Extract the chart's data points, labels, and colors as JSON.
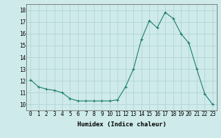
{
  "x": [
    0,
    1,
    2,
    3,
    4,
    5,
    6,
    7,
    8,
    9,
    10,
    11,
    12,
    13,
    14,
    15,
    16,
    17,
    18,
    19,
    20,
    21,
    22,
    23
  ],
  "y": [
    12.1,
    11.5,
    11.3,
    11.2,
    11.0,
    10.5,
    10.3,
    10.3,
    10.3,
    10.3,
    10.3,
    10.4,
    11.5,
    13.0,
    15.5,
    17.1,
    16.5,
    17.8,
    17.3,
    16.0,
    15.2,
    13.0,
    10.9,
    10.0
  ],
  "line_color": "#1a7a6e",
  "marker": "+",
  "marker_size": 3,
  "xlabel": "Humidex (Indice chaleur)",
  "xlim": [
    -0.5,
    23.5
  ],
  "ylim": [
    9.5,
    18.5
  ],
  "yticks": [
    10,
    11,
    12,
    13,
    14,
    15,
    16,
    17,
    18
  ],
  "xtick_labels": [
    "0",
    "1",
    "2",
    "3",
    "4",
    "5",
    "6",
    "7",
    "8",
    "9",
    "10",
    "11",
    "12",
    "13",
    "14",
    "15",
    "16",
    "17",
    "18",
    "19",
    "20",
    "21",
    "22",
    "23"
  ],
  "bg_color": "#ceeaea",
  "grid_color": "#aed0d0",
  "tick_fontsize": 5.5,
  "xlabel_fontsize": 6.5
}
